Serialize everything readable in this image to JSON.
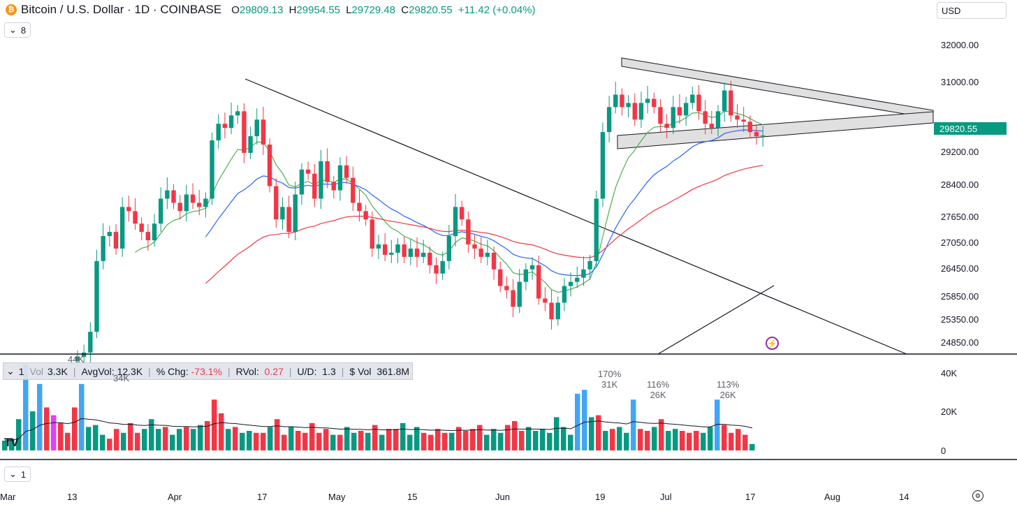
{
  "header": {
    "title": "Bitcoin / U.S. Dollar · 1D · COINBASE",
    "o_label": "O",
    "o_value": "29809.13",
    "h_label": "H",
    "h_value": "29954.55",
    "l_label": "L",
    "l_value": "29729.48",
    "c_label": "C",
    "c_value": "29820.55",
    "change": "+11.42 (+0.04%)",
    "indicators_count": "8"
  },
  "currency": "USD",
  "price_tag": "29820.55",
  "volume_legend": {
    "label": "Vol",
    "vol": "3.3K",
    "avgvol_label": "AvgVol:",
    "avgvol": "12.3K",
    "chg_label": "% Chg:",
    "chg": "-73.1%",
    "rvol_label": "RVol:",
    "rvol": "0.27",
    "ud_label": "U/D:",
    "ud": "1.3",
    "dvol_label": "$ Vol",
    "dvol": "361.8M",
    "count": "1"
  },
  "bottom_pane_count": "1",
  "volume_annotations": [
    {
      "pct": "170%",
      "val": "31K"
    },
    {
      "pct": "116%",
      "val": "26K"
    },
    {
      "pct": "113%",
      "val": "26K"
    },
    {
      "val": "44K"
    },
    {
      "val": "34K"
    }
  ],
  "chart_data": {
    "type": "candlestick",
    "symbol": "Bitcoin / U.S. Dollar",
    "interval": "1D",
    "exchange": "COINBASE",
    "price_axis": [
      "32000.00",
      "31000.00",
      "29200.00",
      "28400.00",
      "27650.00",
      "27050.00",
      "26450.00",
      "25850.00",
      "25350.00",
      "24850.00"
    ],
    "volume_axis": [
      "40K",
      "20K",
      "0"
    ],
    "time_axis": [
      "Mar",
      "13",
      "Apr",
      "17",
      "May",
      "15",
      "Jun",
      "19",
      "Jul",
      "17",
      "Aug",
      "14"
    ],
    "series": [
      {
        "name": "Close",
        "values": [
          24500,
          24600,
          25100,
          26800,
          27400,
          27500,
          27100,
          28100,
          28000,
          27700,
          27500,
          27300,
          27700,
          28300,
          28500,
          28200,
          28000,
          28400,
          28200,
          28100,
          28300,
          29700,
          30100,
          30000,
          30300,
          30400,
          29400,
          29800,
          30200,
          29600,
          28600,
          27800,
          28100,
          27500,
          28400,
          29000,
          28900,
          28300,
          29200,
          28700,
          28500,
          29100,
          28800,
          28200,
          28000,
          27800,
          27100,
          27200,
          26950,
          27000,
          27200,
          26900,
          27100,
          26900,
          27000,
          26700,
          26500,
          26800,
          27400,
          28100,
          27800,
          27200,
          27100,
          26900,
          27000,
          26600,
          26200,
          26100,
          25700,
          26300,
          26600,
          26700,
          25900,
          25800,
          25400,
          25800,
          26200,
          26300,
          26400,
          26600,
          26800,
          28300,
          29900,
          30500,
          30800,
          30500,
          30600,
          30200,
          30600,
          30700,
          30500,
          30100,
          30000,
          30500,
          30300,
          30600,
          30800,
          30400,
          30100,
          30000,
          30400,
          30900,
          30300,
          30200,
          30150,
          29900,
          29800,
          29820
        ]
      },
      {
        "name": "Volume",
        "values": [
          5000,
          6000,
          16000,
          44000,
          20000,
          34000,
          22000,
          18000,
          14000,
          9000,
          22000,
          34000,
          12000,
          13000,
          8000,
          6000,
          11000,
          9000,
          14000,
          9000,
          11000,
          16000,
          11000,
          12000,
          8000,
          11000,
          12000,
          11000,
          13000,
          15000,
          26000,
          19000,
          11000,
          12000,
          9000,
          10000,
          9000,
          9000,
          12000,
          16000,
          8000,
          12000,
          10000,
          9000,
          14000,
          9000,
          11000,
          8000,
          8000,
          12000,
          9000,
          10000,
          9000,
          13000,
          8000,
          11000,
          11000,
          14000,
          8000,
          12000,
          9000,
          8000,
          11000,
          9000,
          9000,
          12000,
          10000,
          11000,
          13000,
          8000,
          11000,
          9000,
          13000,
          15000,
          10000,
          12000,
          10000,
          11000,
          9000,
          17000,
          12000,
          8000,
          29000,
          31000,
          17000,
          18000,
          10000,
          11000,
          12000,
          9000,
          26000,
          11000,
          10000,
          12000,
          16000,
          10000,
          11000,
          10000,
          9000,
          10000,
          9000,
          12000,
          26000,
          13000,
          9000,
          11000,
          8000,
          3300
        ]
      }
    ],
    "indicators": [
      {
        "name": "EMA short",
        "color": "#4caf50"
      },
      {
        "name": "EMA medium",
        "color": "#2962ff"
      },
      {
        "name": "EMA long",
        "color": "#f23645"
      },
      {
        "name": "Volume MA",
        "color": "#131722"
      }
    ],
    "colors": {
      "up": "#089981",
      "down": "#f23645",
      "spike": "#42a5f5",
      "magenta": "#e040fb"
    }
  }
}
